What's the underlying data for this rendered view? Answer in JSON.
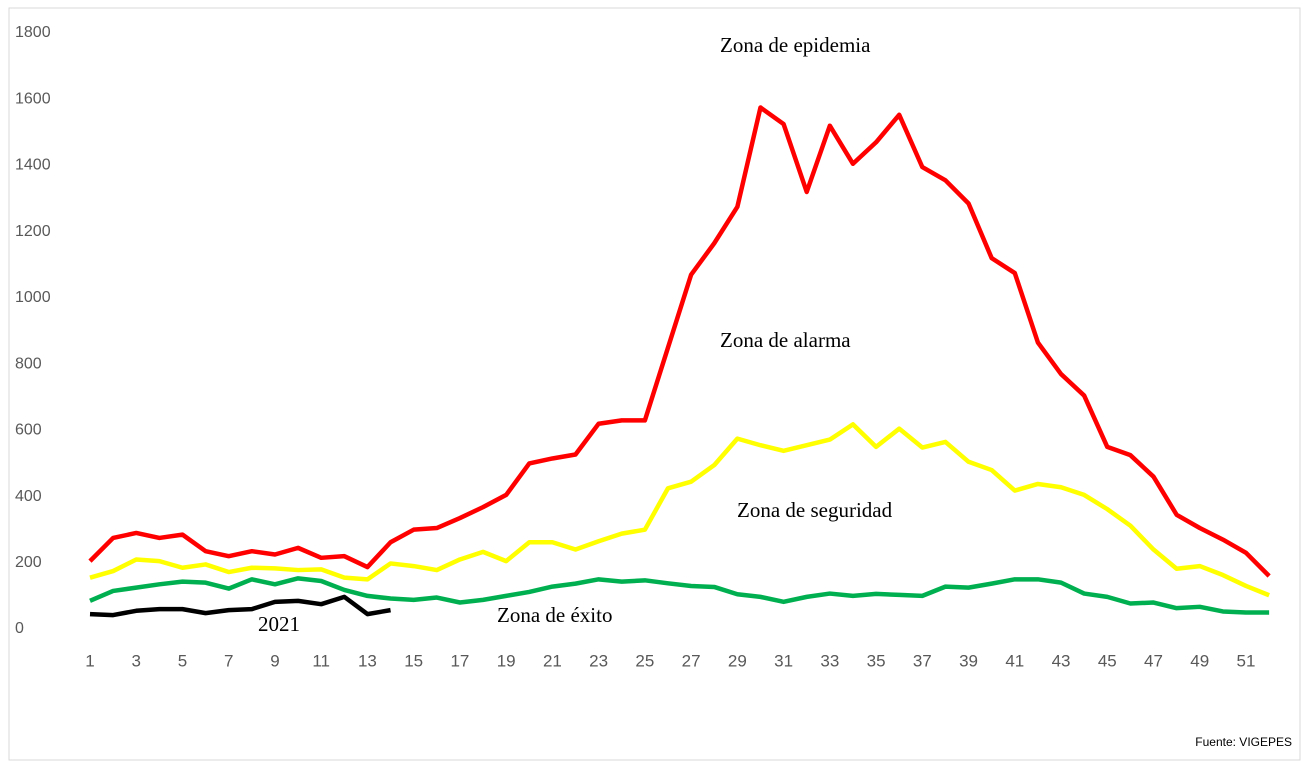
{
  "chart_data": {
    "type": "line",
    "categories": [
      "1",
      null,
      "3",
      null,
      "5",
      null,
      "7",
      null,
      "9",
      null,
      "11",
      null,
      "13",
      null,
      "15",
      null,
      "17",
      null,
      "19",
      null,
      "21",
      null,
      "23",
      null,
      "25",
      null,
      "27",
      null,
      "29",
      null,
      "31",
      null,
      "33",
      null,
      "35",
      null,
      "37",
      null,
      "39",
      null,
      "41",
      null,
      "43",
      null,
      "45",
      null,
      "47",
      null,
      "49",
      null,
      "51",
      null
    ],
    "series": [
      {
        "color": "#ff0000",
        "values": [
          205,
          275,
          290,
          275,
          285,
          235,
          220,
          235,
          225,
          245,
          215,
          220,
          187,
          262,
          300,
          305,
          335,
          368,
          405,
          500,
          515,
          527,
          620,
          630,
          630,
          850,
          1070,
          1165,
          1275,
          1575,
          1525,
          1320,
          1520,
          1405,
          1470,
          1553,
          1395,
          1355,
          1285,
          1120,
          1075,
          865,
          770,
          705,
          550,
          525,
          460,
          345,
          305,
          270,
          230,
          160
        ]
      },
      {
        "color": "#ffff00",
        "values": [
          155,
          175,
          210,
          205,
          185,
          195,
          172,
          185,
          183,
          178,
          180,
          155,
          150,
          198,
          190,
          178,
          210,
          233,
          205,
          262,
          262,
          240,
          265,
          288,
          300,
          425,
          445,
          495,
          575,
          555,
          538,
          555,
          572,
          618,
          550,
          605,
          548,
          565,
          505,
          480,
          418,
          438,
          428,
          405,
          362,
          312,
          240,
          182,
          190,
          163,
          130,
          102
        ]
      },
      {
        "color": "#00b050",
        "values": [
          85,
          115,
          125,
          135,
          143,
          140,
          122,
          150,
          135,
          153,
          145,
          118,
          100,
          92,
          88,
          95,
          80,
          88,
          100,
          112,
          128,
          137,
          150,
          143,
          147,
          138,
          130,
          127,
          105,
          97,
          82,
          97,
          107,
          100,
          106,
          103,
          100,
          128,
          125,
          137,
          150,
          150,
          140,
          107,
          97,
          77,
          80,
          63,
          67,
          53,
          50,
          50
        ]
      },
      {
        "color": "#000000",
        "values": [
          45,
          42,
          55,
          60,
          60,
          48,
          57,
          60,
          82,
          85,
          75,
          97,
          45,
          57,
          null,
          null,
          null,
          null,
          null,
          null,
          null,
          null,
          null,
          null,
          null,
          null,
          null,
          null,
          null,
          null,
          null,
          null,
          null,
          null,
          null,
          null,
          null,
          null,
          null,
          null,
          null,
          null,
          null,
          null,
          null,
          null,
          null,
          null,
          null,
          null,
          null,
          null
        ]
      }
    ],
    "annotations": [
      "Zona de epidemia",
      "Zona de alarma",
      "Zona de seguridad",
      "Zona de éxito",
      "2021"
    ],
    "source": "Fuente: VIGEPES",
    "ylim": [
      0,
      1800
    ],
    "yticks": [
      0,
      200,
      400,
      600,
      800,
      1000,
      1200,
      1400,
      1600,
      1800
    ],
    "grid": false
  }
}
